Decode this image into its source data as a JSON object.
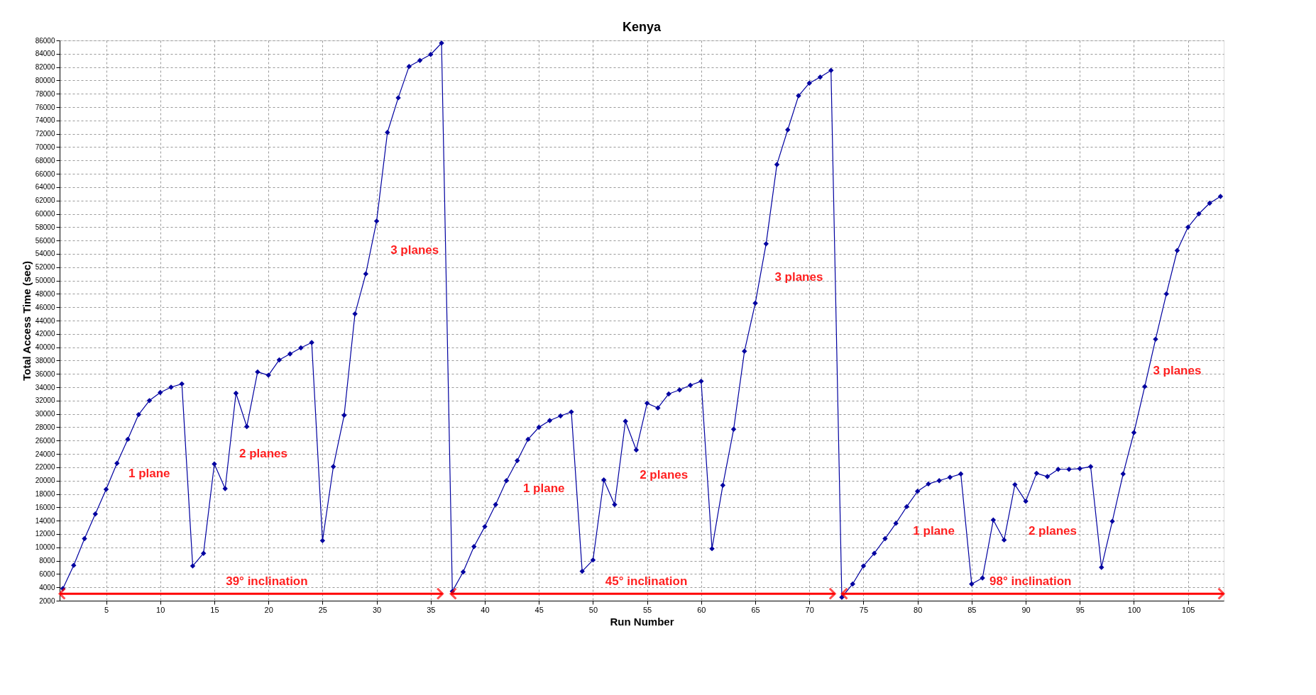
{
  "chart_data": {
    "type": "line",
    "title": "Kenya",
    "xlabel": "Run Number",
    "ylabel": "Total Access Time (sec)",
    "x": [
      1,
      2,
      3,
      4,
      5,
      6,
      7,
      8,
      9,
      10,
      11,
      12,
      13,
      14,
      15,
      16,
      17,
      18,
      19,
      20,
      21,
      22,
      23,
      24,
      25,
      26,
      27,
      28,
      29,
      30,
      31,
      32,
      33,
      34,
      35,
      36,
      37,
      38,
      39,
      40,
      41,
      42,
      43,
      44,
      45,
      46,
      47,
      48,
      49,
      50,
      51,
      52,
      53,
      54,
      55,
      56,
      57,
      58,
      59,
      60,
      61,
      62,
      63,
      64,
      65,
      66,
      67,
      68,
      69,
      70,
      71,
      72,
      73,
      74,
      75,
      76,
      77,
      78,
      79,
      80,
      81,
      82,
      83,
      84,
      85,
      86,
      87,
      88,
      89,
      90,
      91,
      92,
      93,
      94,
      95,
      96,
      97,
      98,
      99,
      100,
      101,
      102,
      103,
      104,
      105,
      106,
      107,
      108
    ],
    "series": [
      {
        "color": "#0000a0",
        "values": [
          3800,
          7300,
          11300,
          15000,
          18700,
          22600,
          26200,
          29900,
          32000,
          33200,
          34000,
          34500,
          7200,
          9100,
          22500,
          18800,
          33100,
          28100,
          36300,
          35800,
          38100,
          39000,
          39900,
          40700,
          11000,
          22100,
          29800,
          45000,
          51000,
          58900,
          72200,
          77400,
          82100,
          83000,
          83900,
          85600,
          3400,
          6300,
          10100,
          13100,
          16400,
          20000,
          23000,
          26200,
          28000,
          29000,
          29700,
          30300,
          6400,
          8100,
          20100,
          16400,
          28900,
          24600,
          31600,
          30900,
          33000,
          33600,
          34300,
          34900,
          9800,
          19300,
          27700,
          39400,
          46600,
          55500,
          67400,
          72600,
          77700,
          79600,
          80500,
          81500,
          2500,
          4500,
          7200,
          9100,
          11300,
          13600,
          16100,
          18400,
          19500,
          20000,
          20500,
          21000,
          4500,
          5400,
          14100,
          11100,
          19400,
          16900,
          21100,
          20600,
          21700,
          21700,
          21800,
          22100,
          7000,
          13900,
          21000,
          27200,
          34100,
          41200,
          48000,
          54500,
          58000,
          60000,
          61600,
          62600
        ]
      }
    ],
    "xlim": [
      0.7,
      108.3
    ],
    "xticks": [
      5,
      10,
      15,
      20,
      25,
      30,
      35,
      40,
      45,
      50,
      55,
      60,
      65,
      70,
      75,
      80,
      85,
      90,
      95,
      100,
      105
    ],
    "ylim": [
      2000,
      86000
    ],
    "yticks": [
      2000,
      4000,
      6000,
      8000,
      10000,
      12000,
      14000,
      16000,
      18000,
      20000,
      22000,
      24000,
      26000,
      28000,
      30000,
      32000,
      34000,
      36000,
      38000,
      40000,
      42000,
      44000,
      46000,
      48000,
      50000,
      52000,
      54000,
      56000,
      58000,
      60000,
      62000,
      64000,
      66000,
      68000,
      70000,
      72000,
      74000,
      76000,
      78000,
      80000,
      82000,
      84000,
      86000
    ],
    "grid": true,
    "marker": "diamond",
    "line_style": "solid",
    "annotations": [
      "1 plane",
      "2 planes",
      "3 planes",
      "1 plane",
      "2 planes",
      "3 planes",
      "1 plane",
      "2 planes",
      "3 planes",
      "39° inclination",
      "45° inclination",
      "98° inclination"
    ]
  }
}
